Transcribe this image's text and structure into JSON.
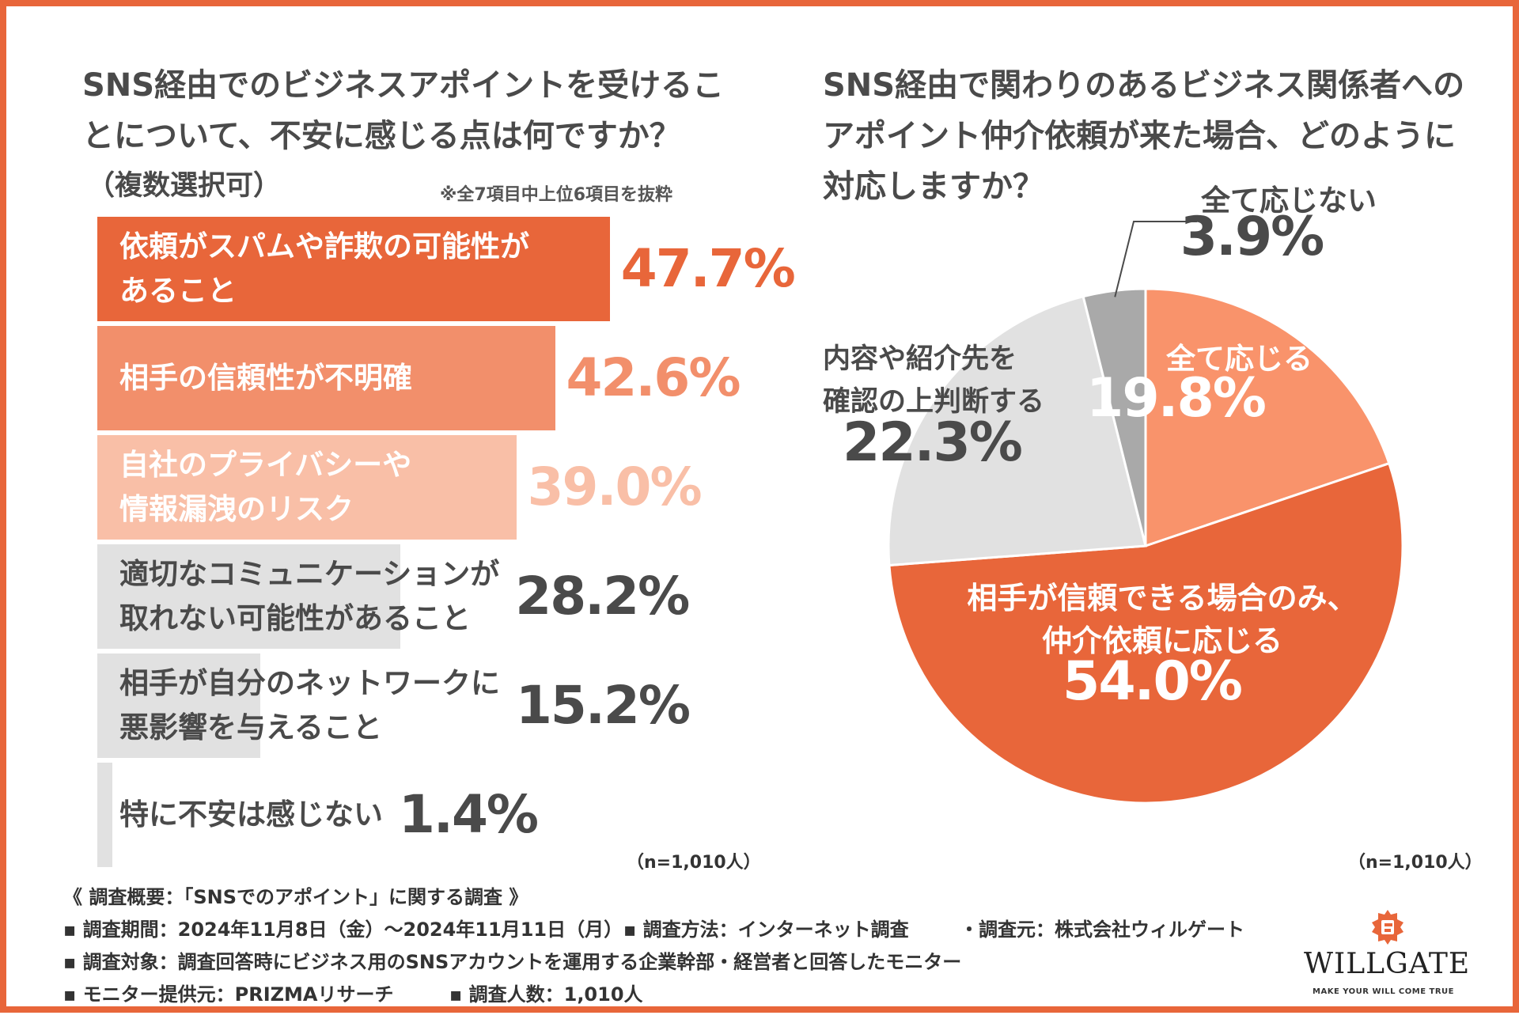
{
  "chart_data": [
    {
      "type": "bar",
      "orientation": "horizontal",
      "title": "SNS経由でのビジネスアポイントを受けることについて、不安に感じる点は何ですか？",
      "subtitle": "（複数選択可）",
      "note": "※全7項目中上位6項目を抜粋",
      "n_note": "（n=1,010人）",
      "xlim": [
        0,
        100
      ],
      "categories": [
        "依頼がスパムや詐欺の可能性があること",
        "相手の信頼性が不明確",
        "自社のプライバシーや情報漏洩のリスク",
        "適切なコミュニケーションが取れない可能性があること",
        "相手が自分のネットワークに悪影響を与えること",
        "特に不安は感じない"
      ],
      "labels": [
        "依頼がスパムや詐欺の可能性が\nあること",
        "相手の信頼性が不明確",
        "自社のプライバシーや\n情報漏洩のリスク",
        "適切なコミュニケーションが\n取れない可能性があること",
        "相手が自分のネットワークに\n悪影響を与えること",
        "特に不安は感じない"
      ],
      "values": [
        47.7,
        42.6,
        39.0,
        28.2,
        15.2,
        1.4
      ],
      "value_labels": [
        "47.7%",
        "42.6%",
        "39.0%",
        "28.2%",
        "15.2%",
        "1.4%"
      ],
      "bar_colors": [
        "#e8663a",
        "#f28f6b",
        "#f9bfa7",
        "#e1e1e1",
        "#e1e1e1",
        "#e1e1e1"
      ],
      "label_colors": [
        "#ffffff",
        "#ffffff",
        "#ffffff",
        "#4a4a4a",
        "#4a4a4a",
        "#4a4a4a"
      ],
      "value_colors": [
        "#e8663a",
        "#f28f6b",
        "#f9bfa7",
        "#4a4a4a",
        "#4a4a4a",
        "#4a4a4a"
      ]
    },
    {
      "type": "pie",
      "title": "SNS経由で関わりのあるビジネス関係者へのアポイント仲介依頼が来た場合、どのように対応しますか？",
      "n_note": "（n=1,010人）",
      "start": "12 o'clock, clockwise",
      "slices": [
        {
          "label": "全て応じる",
          "value": 19.8,
          "value_label": "19.8%",
          "color": "#f9936b",
          "text_color": "#ffffff"
        },
        {
          "label": "相手が信頼できる場合のみ、\n仲介依頼に応じる",
          "value": 54.0,
          "value_label": "54.0%",
          "color": "#e8663a",
          "text_color": "#ffffff"
        },
        {
          "label": "内容や紹介先を\n確認の上判断する",
          "value": 22.3,
          "value_label": "22.3%",
          "color": "#e1e1e1",
          "text_color": "#4a4a4a"
        },
        {
          "label": "全て応じない",
          "value": 3.9,
          "value_label": "3.9%",
          "color": "#a9a9a9",
          "text_color": "#4a4a4a"
        }
      ]
    }
  ],
  "survey": {
    "heading": "《 調査概要：「SNSでのアポイント」に関する調査 》",
    "period": "▪ 調査期間：2024年11月8日（金）〜2024年11月11日（月）",
    "method": "▪ 調査方法：インターネット調査",
    "source": "・調査元：株式会社ウィルゲート",
    "target": "▪ 調査対象：調査回答時にビジネス用のSNSアカウントを運用する企業幹部・経営者と回答したモニター",
    "provider": "▪ モニター提供元：PRIZMAリサーチ",
    "count": "▪ 調査人数：1,010人"
  },
  "logo": {
    "name": "WILLGATE",
    "tagline": "MAKE YOUR WILL COME TRUE",
    "color": "#e8663a"
  }
}
